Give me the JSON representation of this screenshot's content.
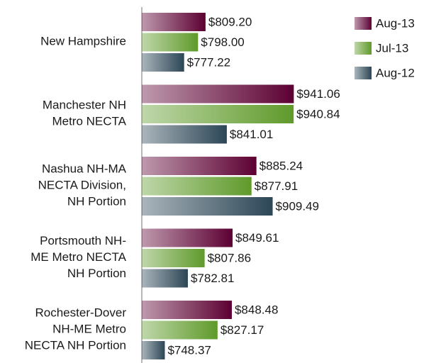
{
  "chart_data": {
    "type": "bar",
    "orientation": "horizontal",
    "categories": [
      "New Hampshire",
      "Manchester NH\nMetro NECTA",
      "Nashua NH-MA\nNECTA Division,\nNH Portion",
      "Portsmouth NH-\nME Metro NECTA\nNH Portion",
      "Rochester-Dover\nNH-ME Metro\nNECTA NH Portion"
    ],
    "series": [
      {
        "name": "Aug-13",
        "color": "#5c0032",
        "values": [
          809.2,
          941.06,
          885.24,
          849.61,
          848.48
        ],
        "value_labels": [
          "$809.20",
          "$941.06",
          "$885.24",
          "$849.61",
          "$848.48"
        ]
      },
      {
        "name": "Jul-13",
        "color": "#5f9a2a",
        "values": [
          798.0,
          940.84,
          877.91,
          807.86,
          827.17
        ],
        "value_labels": [
          "$798.00",
          "$940.84",
          "$877.91",
          "$807.86",
          "$827.17"
        ]
      },
      {
        "name": "Aug-12",
        "color": "#2c4656",
        "values": [
          777.22,
          841.01,
          909.49,
          782.81,
          748.37
        ],
        "value_labels": [
          "$777.22",
          "$841.01",
          "$909.49",
          "$782.81",
          "$748.37"
        ]
      }
    ],
    "xlim": [
      714,
      1000
    ],
    "legend": "top-right"
  }
}
